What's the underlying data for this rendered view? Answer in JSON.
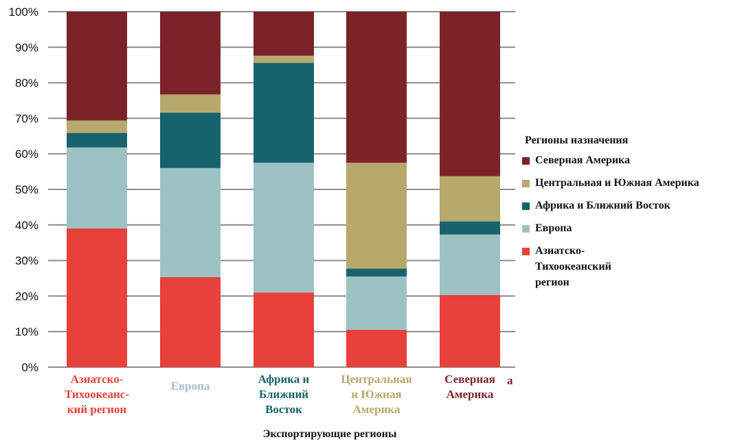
{
  "chart_data": {
    "type": "bar",
    "stacked": true,
    "percent": true,
    "categories": [
      "Азиатско-\nТихоокеанс-\nкий регион",
      "Европа",
      "Африка и\nБлижний\nВосток",
      "Центральная\nи Южная\nАмерика",
      "Северная\nАмерика"
    ],
    "category_colors": [
      "#e8403a",
      "#9dc2c4",
      "#17636d",
      "#b6a96b",
      "#7a2329"
    ],
    "series": [
      {
        "name": "Азиатско-\nТихоокеанский\nрегион",
        "color": "#e8403a",
        "values": [
          39,
          25.3,
          21,
          10.5,
          20.3
        ]
      },
      {
        "name": "Европа",
        "color": "#9dc2c4",
        "values": [
          22.8,
          30.7,
          36.5,
          15,
          17
        ]
      },
      {
        "name": "Африка и Ближний Восток",
        "color": "#17636d",
        "values": [
          4.1,
          15.6,
          28.1,
          2.2,
          3.7
        ]
      },
      {
        "name": "Центральная и Южная Америка",
        "color": "#b6a96b",
        "values": [
          3.5,
          5.1,
          2,
          29.8,
          12.7
        ]
      },
      {
        "name": "Северная Америка",
        "color": "#7a2329",
        "values": [
          30.6,
          23.3,
          12.4,
          42.5,
          46.3
        ]
      }
    ],
    "yticks": [
      "0%",
      "10%",
      "20%",
      "30%",
      "40%",
      "50%",
      "60%",
      "70%",
      "80%",
      "90%",
      "100%"
    ],
    "ylim": [
      0,
      100
    ],
    "xlabel": "Экспортирующие регионы",
    "ylabel": "",
    "legend_title": "Регионы назначения",
    "legend_placement": "right",
    "grid": true
  },
  "legend_order": [
    4,
    3,
    2,
    1,
    0
  ],
  "stray_text": "a"
}
